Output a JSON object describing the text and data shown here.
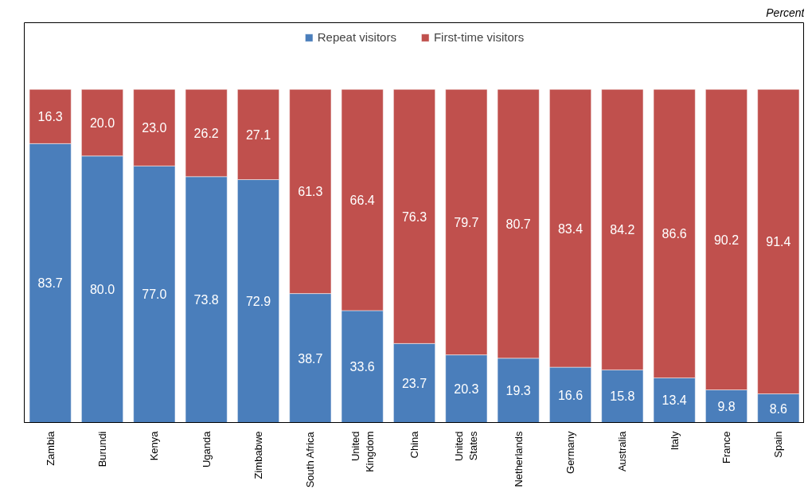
{
  "chart_data": {
    "type": "bar",
    "stacked": true,
    "legend": "top",
    "annotations": [
      "Percent"
    ],
    "categories": [
      "Zambia",
      "Burundi",
      "Kenya",
      "Uganda",
      "Zimbabwe",
      "South Africa",
      "United\nKingdom",
      "China",
      "United\nStates",
      "Netherlands",
      "Germany",
      "Australia",
      "Italy",
      "France",
      "Spain"
    ],
    "series": [
      {
        "name": "Repeat visitors",
        "color": "#4a7ebb",
        "values": [
          83.7,
          80.0,
          77.0,
          73.8,
          72.9,
          38.7,
          33.6,
          23.7,
          20.3,
          19.3,
          16.6,
          15.8,
          13.4,
          9.8,
          8.6
        ],
        "value_labels": [
          "83.7",
          "80.0",
          "77.0",
          "73.8",
          "72.9",
          "38.7",
          "33.6",
          "23.7",
          "20.3",
          "19.3",
          "16.6",
          "15.8",
          "13.4",
          "9.8",
          "8.6"
        ]
      },
      {
        "name": "First-time visitors",
        "color": "#c0504d",
        "values": [
          16.3,
          20.0,
          23.0,
          26.2,
          27.1,
          61.3,
          66.4,
          76.3,
          79.7,
          80.7,
          83.4,
          84.2,
          86.6,
          90.2,
          91.4
        ],
        "value_labels": [
          "16.3",
          "20.0",
          "23.0",
          "26.2",
          "27.1",
          "61.3",
          "66.4",
          "76.3",
          "79.7",
          "80.7",
          "83.4",
          "84.2",
          "86.6",
          "90.2",
          "91.4"
        ]
      }
    ]
  }
}
